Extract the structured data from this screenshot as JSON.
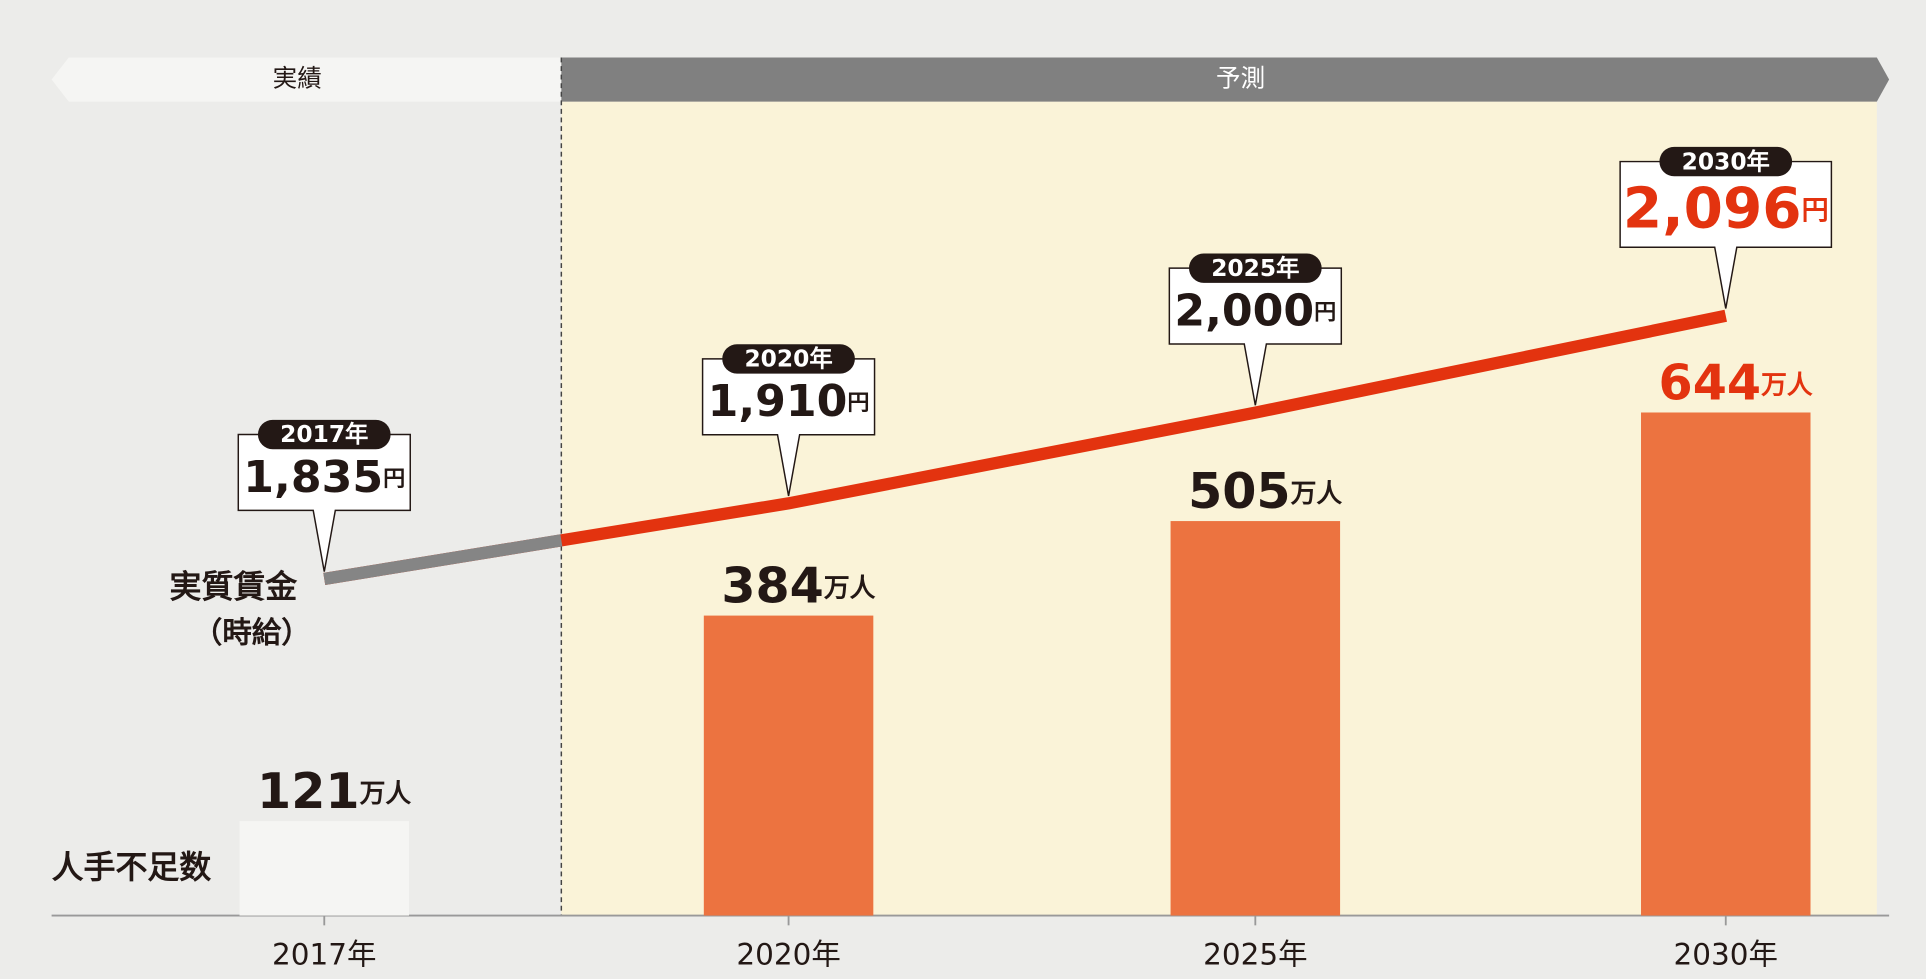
{
  "chart_data": {
    "type": "bar_line",
    "periods": {
      "actual": "実績",
      "forecast": "予測"
    },
    "categories": [
      "2017年",
      "2020年",
      "2025年",
      "2030年"
    ],
    "bars": {
      "name": "人手不足数",
      "unit": "万人",
      "values": [
        121,
        384,
        505,
        644
      ],
      "colors": [
        "#f5f5f3",
        "#ec7340",
        "#ec7340",
        "#ec7340"
      ]
    },
    "line": {
      "name": "実質賃金",
      "name_note": "（時給）",
      "unit": "円",
      "values": [
        1835,
        1910,
        2000,
        2096
      ],
      "value_labels": [
        "1,835",
        "1,910",
        "2,000",
        "2,096"
      ],
      "color": "#e3330f",
      "actual_color": "#858585"
    },
    "highlight_color": "#e3330f"
  }
}
